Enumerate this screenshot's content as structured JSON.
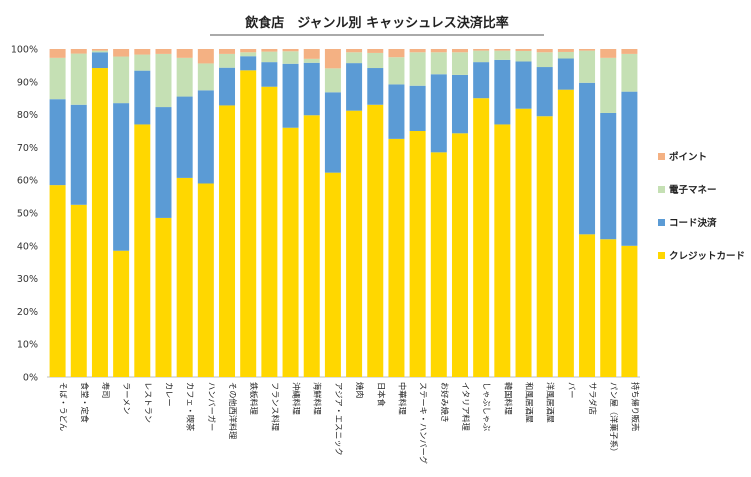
{
  "chart_data": {
    "type": "bar",
    "stacked": true,
    "title": "飲食店　ジャンル別 キャッシュレス決済比率",
    "ylim": [
      0,
      100
    ],
    "y_ticks": [
      "0%",
      "10%",
      "20%",
      "30%",
      "40%",
      "50%",
      "60%",
      "70%",
      "80%",
      "90%",
      "100%"
    ],
    "grid": false,
    "legend_position": "right",
    "categories": [
      "そば・うどん",
      "食堂・定食",
      "寿司",
      "ラーメン",
      "レストラン",
      "カレー",
      "カフェ・喫茶",
      "ハンバーガー",
      "その他西洋料理",
      "鉄板料理",
      "フランス料理",
      "沖縄料理",
      "海鮮料理",
      "アジア・エスニック",
      "焼肉",
      "日本食",
      "中華料理",
      "ステーキ・ハンバーグ",
      "お好み焼き",
      "イタリア料理",
      "しゃぶしゃぶ",
      "韓国料理",
      "和風居酒屋",
      "洋風居酒屋",
      "バー",
      "サラダ店",
      "パン屋（洋菓子系）",
      "持ち帰り販売"
    ],
    "series": [
      {
        "name": "クレジットカード",
        "color": "#FFD700",
        "values": [
          58.5,
          52.5,
          94.2,
          38.5,
          77.0,
          48.5,
          60.7,
          59.0,
          82.8,
          93.5,
          88.5,
          76.0,
          79.8,
          62.3,
          81.2,
          83.0,
          72.6,
          75.0,
          68.5,
          74.3,
          85.0,
          77.0,
          81.8,
          79.5,
          87.6,
          43.5,
          42.0,
          40.0
        ]
      },
      {
        "name": "コード決済",
        "color": "#5B9BD5",
        "values": [
          26.2,
          30.5,
          4.8,
          45.0,
          16.4,
          33.8,
          24.8,
          28.4,
          11.5,
          4.3,
          7.5,
          19.5,
          16.0,
          24.5,
          14.5,
          11.2,
          16.6,
          13.8,
          23.8,
          17.8,
          11.0,
          19.7,
          14.4,
          15.0,
          9.5,
          46.2,
          38.5,
          47.0
        ]
      },
      {
        "name": "電子マネー",
        "color": "#C5E0B4",
        "values": [
          12.6,
          15.6,
          0.5,
          14.2,
          4.9,
          16.2,
          11.8,
          8.2,
          4.2,
          1.2,
          3.2,
          3.8,
          1.2,
          7.3,
          3.3,
          4.6,
          8.3,
          10.2,
          6.7,
          6.9,
          3.5,
          2.8,
          3.2,
          4.5,
          2.0,
          9.8,
          16.8,
          11.5
        ]
      },
      {
        "name": "ポイント",
        "color": "#F4B183",
        "values": [
          2.7,
          1.4,
          0.5,
          2.3,
          1.7,
          1.5,
          2.7,
          4.4,
          1.5,
          1.0,
          0.8,
          0.7,
          3.0,
          5.9,
          1.0,
          1.2,
          2.5,
          1.0,
          1.0,
          1.0,
          0.5,
          0.5,
          0.6,
          1.0,
          0.9,
          0.5,
          2.7,
          1.5
        ]
      }
    ]
  }
}
